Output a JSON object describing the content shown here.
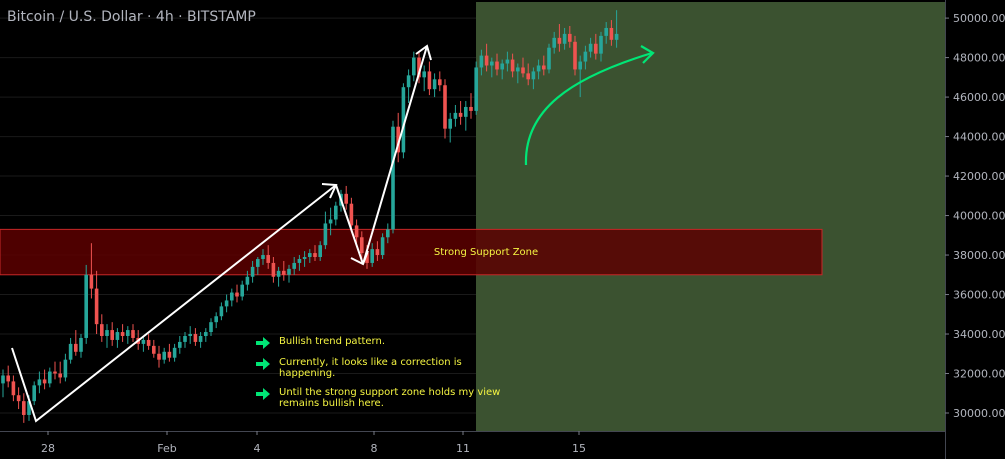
{
  "header": {
    "title": "Bitcoin / U.S. Dollar · 4h · BITSTAMP"
  },
  "colors": {
    "background": "#000000",
    "up_candle": "#26a69a",
    "down_candle": "#ef5350",
    "projection_zone": "#3b5230",
    "support_zone_fill": "#5c0000",
    "support_zone_border": "#c62828",
    "annotation_arrow": "#00e676",
    "trend_line": "#ffffff",
    "note_text": "#f5f542"
  },
  "annotations": {
    "support_zone_label": "Strong Support Zone",
    "notes": [
      "Bullish trend pattern.",
      "Currently, it looks like a correction is happening.",
      "Until the strong support zone holds my view remains bullish here."
    ]
  },
  "chart_data": {
    "type": "candlestick",
    "ylim": [
      29000,
      50500
    ],
    "y_ticks": [
      "30000.00",
      "32000.00",
      "34000.00",
      "36000.00",
      "38000.00",
      "40000.00",
      "42000.00",
      "44000.00",
      "46000.00",
      "48000.00",
      "50000.00"
    ],
    "x_ticks": [
      "28",
      "Feb",
      "4",
      "8",
      "11",
      "15"
    ],
    "support_zone": [
      37000,
      39300
    ],
    "candles": [
      {
        "o": 31500,
        "h": 32200,
        "l": 30800,
        "c": 31900
      },
      {
        "o": 31900,
        "h": 32400,
        "l": 31300,
        "c": 31600
      },
      {
        "o": 31600,
        "h": 31900,
        "l": 30600,
        "c": 30900
      },
      {
        "o": 30900,
        "h": 31300,
        "l": 30200,
        "c": 30600
      },
      {
        "o": 30600,
        "h": 31000,
        "l": 29500,
        "c": 29900
      },
      {
        "o": 29900,
        "h": 30900,
        "l": 29600,
        "c": 30600
      },
      {
        "o": 30600,
        "h": 31600,
        "l": 30400,
        "c": 31400
      },
      {
        "o": 31400,
        "h": 32100,
        "l": 31000,
        "c": 31700
      },
      {
        "o": 31700,
        "h": 32200,
        "l": 31200,
        "c": 31500
      },
      {
        "o": 31500,
        "h": 32300,
        "l": 31300,
        "c": 32100
      },
      {
        "o": 32100,
        "h": 32600,
        "l": 31700,
        "c": 32000
      },
      {
        "o": 32000,
        "h": 32600,
        "l": 31500,
        "c": 31800
      },
      {
        "o": 31800,
        "h": 33000,
        "l": 31600,
        "c": 32700
      },
      {
        "o": 32700,
        "h": 33800,
        "l": 32500,
        "c": 33500
      },
      {
        "o": 33500,
        "h": 34200,
        "l": 32900,
        "c": 33100
      },
      {
        "o": 33100,
        "h": 34000,
        "l": 32800,
        "c": 33800
      },
      {
        "o": 33800,
        "h": 37500,
        "l": 33500,
        "c": 37000
      },
      {
        "o": 37000,
        "h": 38600,
        "l": 35800,
        "c": 36300
      },
      {
        "o": 36300,
        "h": 37200,
        "l": 34000,
        "c": 34500
      },
      {
        "o": 34500,
        "h": 35000,
        "l": 33600,
        "c": 33900
      },
      {
        "o": 33900,
        "h": 34500,
        "l": 33300,
        "c": 34200
      },
      {
        "o": 34200,
        "h": 34600,
        "l": 33400,
        "c": 33700
      },
      {
        "o": 33700,
        "h": 34300,
        "l": 33300,
        "c": 34100
      },
      {
        "o": 34100,
        "h": 34500,
        "l": 33600,
        "c": 33900
      },
      {
        "o": 33900,
        "h": 34400,
        "l": 33500,
        "c": 34200
      },
      {
        "o": 34200,
        "h": 34500,
        "l": 33600,
        "c": 33800
      },
      {
        "o": 33800,
        "h": 34200,
        "l": 33200,
        "c": 33500
      },
      {
        "o": 33500,
        "h": 33900,
        "l": 33100,
        "c": 33700
      },
      {
        "o": 33700,
        "h": 34000,
        "l": 33200,
        "c": 33400
      },
      {
        "o": 33400,
        "h": 33700,
        "l": 32800,
        "c": 33000
      },
      {
        "o": 33000,
        "h": 33400,
        "l": 32300,
        "c": 32700
      },
      {
        "o": 32700,
        "h": 33300,
        "l": 32500,
        "c": 33100
      },
      {
        "o": 33100,
        "h": 33500,
        "l": 32600,
        "c": 32800
      },
      {
        "o": 32800,
        "h": 33500,
        "l": 32600,
        "c": 33300
      },
      {
        "o": 33300,
        "h": 33900,
        "l": 33000,
        "c": 33600
      },
      {
        "o": 33600,
        "h": 34100,
        "l": 33300,
        "c": 33900
      },
      {
        "o": 33900,
        "h": 34400,
        "l": 33500,
        "c": 34000
      },
      {
        "o": 34000,
        "h": 34300,
        "l": 33400,
        "c": 33600
      },
      {
        "o": 33600,
        "h": 34100,
        "l": 33300,
        "c": 33900
      },
      {
        "o": 33900,
        "h": 34300,
        "l": 33600,
        "c": 34100
      },
      {
        "o": 34100,
        "h": 34800,
        "l": 33900,
        "c": 34600
      },
      {
        "o": 34600,
        "h": 35100,
        "l": 34300,
        "c": 34900
      },
      {
        "o": 34900,
        "h": 35600,
        "l": 34700,
        "c": 35400
      },
      {
        "o": 35400,
        "h": 36000,
        "l": 35100,
        "c": 35700
      },
      {
        "o": 35700,
        "h": 36300,
        "l": 35400,
        "c": 36100
      },
      {
        "o": 36100,
        "h": 36500,
        "l": 35600,
        "c": 35900
      },
      {
        "o": 35900,
        "h": 36700,
        "l": 35700,
        "c": 36500
      },
      {
        "o": 36500,
        "h": 37200,
        "l": 36200,
        "c": 36900
      },
      {
        "o": 36900,
        "h": 37700,
        "l": 36600,
        "c": 37400
      },
      {
        "o": 37400,
        "h": 37900,
        "l": 37000,
        "c": 37800
      },
      {
        "o": 37800,
        "h": 38300,
        "l": 37500,
        "c": 38000
      },
      {
        "o": 38000,
        "h": 38500,
        "l": 37300,
        "c": 37600
      },
      {
        "o": 37600,
        "h": 37900,
        "l": 36600,
        "c": 36900
      },
      {
        "o": 36900,
        "h": 37400,
        "l": 36400,
        "c": 37200
      },
      {
        "o": 37200,
        "h": 37700,
        "l": 36700,
        "c": 37000
      },
      {
        "o": 37000,
        "h": 37500,
        "l": 36600,
        "c": 37300
      },
      {
        "o": 37300,
        "h": 37900,
        "l": 37000,
        "c": 37600
      },
      {
        "o": 37600,
        "h": 38000,
        "l": 37200,
        "c": 37800
      },
      {
        "o": 37800,
        "h": 38200,
        "l": 37400,
        "c": 37900
      },
      {
        "o": 37900,
        "h": 38300,
        "l": 37600,
        "c": 38100
      },
      {
        "o": 38100,
        "h": 38500,
        "l": 37700,
        "c": 37900
      },
      {
        "o": 37900,
        "h": 38700,
        "l": 37700,
        "c": 38500
      },
      {
        "o": 38500,
        "h": 40200,
        "l": 38300,
        "c": 39600
      },
      {
        "o": 39600,
        "h": 40400,
        "l": 39000,
        "c": 39800
      },
      {
        "o": 39800,
        "h": 40700,
        "l": 39500,
        "c": 40500
      },
      {
        "o": 40500,
        "h": 41300,
        "l": 40200,
        "c": 41100
      },
      {
        "o": 41100,
        "h": 41500,
        "l": 40300,
        "c": 40600
      },
      {
        "o": 40600,
        "h": 40900,
        "l": 39300,
        "c": 39500
      },
      {
        "o": 39500,
        "h": 39800,
        "l": 38600,
        "c": 38900
      },
      {
        "o": 38900,
        "h": 39200,
        "l": 37800,
        "c": 38100
      },
      {
        "o": 38100,
        "h": 38500,
        "l": 37300,
        "c": 37600
      },
      {
        "o": 37600,
        "h": 38600,
        "l": 37400,
        "c": 38300
      },
      {
        "o": 38300,
        "h": 38700,
        "l": 37700,
        "c": 38000
      },
      {
        "o": 38000,
        "h": 39100,
        "l": 37800,
        "c": 38900
      },
      {
        "o": 38900,
        "h": 39600,
        "l": 38600,
        "c": 39300
      },
      {
        "o": 39300,
        "h": 44800,
        "l": 39100,
        "c": 44500
      },
      {
        "o": 44500,
        "h": 45200,
        "l": 42700,
        "c": 43200
      },
      {
        "o": 43200,
        "h": 46700,
        "l": 42900,
        "c": 46500
      },
      {
        "o": 46500,
        "h": 47400,
        "l": 45700,
        "c": 47100
      },
      {
        "o": 47100,
        "h": 48300,
        "l": 46800,
        "c": 48000
      },
      {
        "o": 48000,
        "h": 48300,
        "l": 46700,
        "c": 47000
      },
      {
        "o": 47000,
        "h": 47600,
        "l": 46300,
        "c": 47300
      },
      {
        "o": 47300,
        "h": 47800,
        "l": 46100,
        "c": 46400
      },
      {
        "o": 46400,
        "h": 47200,
        "l": 46000,
        "c": 46900
      },
      {
        "o": 46900,
        "h": 47300,
        "l": 46300,
        "c": 46600
      },
      {
        "o": 46600,
        "h": 46900,
        "l": 43900,
        "c": 44400
      },
      {
        "o": 44400,
        "h": 45200,
        "l": 43700,
        "c": 44900
      },
      {
        "o": 44900,
        "h": 45600,
        "l": 44500,
        "c": 45200
      },
      {
        "o": 45200,
        "h": 45800,
        "l": 44600,
        "c": 45000
      },
      {
        "o": 45000,
        "h": 45800,
        "l": 44300,
        "c": 45500
      },
      {
        "o": 45500,
        "h": 46200,
        "l": 44900,
        "c": 45300
      },
      {
        "o": 45300,
        "h": 47800,
        "l": 45100,
        "c": 47500
      },
      {
        "o": 47500,
        "h": 48400,
        "l": 47100,
        "c": 48100
      },
      {
        "o": 48100,
        "h": 48700,
        "l": 47300,
        "c": 47600
      },
      {
        "o": 47600,
        "h": 48000,
        "l": 47000,
        "c": 47800
      },
      {
        "o": 47800,
        "h": 48200,
        "l": 47100,
        "c": 47400
      },
      {
        "o": 47400,
        "h": 47900,
        "l": 46900,
        "c": 47700
      },
      {
        "o": 47700,
        "h": 48300,
        "l": 47300,
        "c": 47900
      },
      {
        "o": 47900,
        "h": 48200,
        "l": 47000,
        "c": 47300
      },
      {
        "o": 47300,
        "h": 47700,
        "l": 46700,
        "c": 47500
      },
      {
        "o": 47500,
        "h": 48000,
        "l": 47000,
        "c": 47200
      },
      {
        "o": 47200,
        "h": 47700,
        "l": 46600,
        "c": 46900
      },
      {
        "o": 46900,
        "h": 47500,
        "l": 46400,
        "c": 47300
      },
      {
        "o": 47300,
        "h": 47900,
        "l": 46900,
        "c": 47600
      },
      {
        "o": 47600,
        "h": 48100,
        "l": 47100,
        "c": 47400
      },
      {
        "o": 47400,
        "h": 48700,
        "l": 47200,
        "c": 48500
      },
      {
        "o": 48500,
        "h": 49300,
        "l": 48200,
        "c": 49000
      },
      {
        "o": 49000,
        "h": 49700,
        "l": 48300,
        "c": 48700
      },
      {
        "o": 48700,
        "h": 49500,
        "l": 48400,
        "c": 49200
      },
      {
        "o": 49200,
        "h": 49600,
        "l": 48500,
        "c": 48800
      },
      {
        "o": 48800,
        "h": 49100,
        "l": 47100,
        "c": 47400
      },
      {
        "o": 47400,
        "h": 48100,
        "l": 46000,
        "c": 47800
      },
      {
        "o": 47800,
        "h": 48600,
        "l": 47400,
        "c": 48300
      },
      {
        "o": 48300,
        "h": 49000,
        "l": 48000,
        "c": 48700
      },
      {
        "o": 48700,
        "h": 49200,
        "l": 47900,
        "c": 48200
      },
      {
        "o": 48200,
        "h": 49300,
        "l": 47800,
        "c": 49100
      },
      {
        "o": 49100,
        "h": 49800,
        "l": 48700,
        "c": 49500
      },
      {
        "o": 49500,
        "h": 49900,
        "l": 48600,
        "c": 48900
      },
      {
        "o": 48900,
        "h": 50400,
        "l": 48500,
        "c": 49200
      }
    ]
  }
}
